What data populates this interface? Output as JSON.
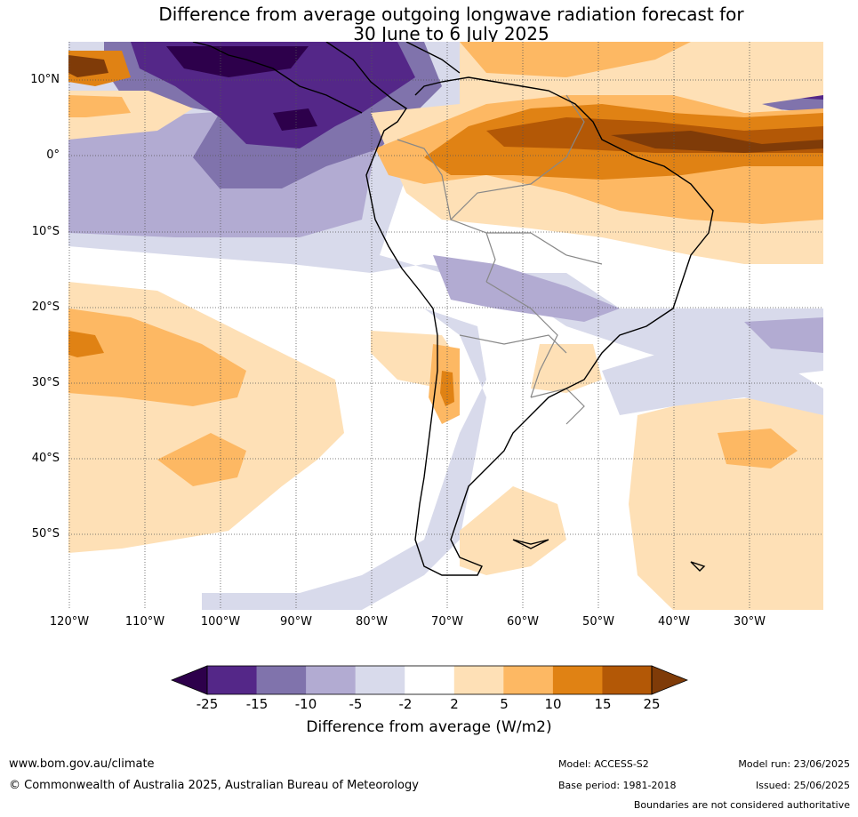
{
  "title": {
    "line1": "Difference from average outgoing longwave radiation forecast for",
    "line2": "30 June to 6 July 2025"
  },
  "map": {
    "lat_labels": [
      "10°N",
      "0°",
      "10°S",
      "20°S",
      "30°S",
      "40°S",
      "50°S"
    ],
    "lon_labels": [
      "120°W",
      "110°W",
      "100°W",
      "90°W",
      "80°W",
      "70°W",
      "60°W",
      "50°W",
      "40°W",
      "30°W"
    ],
    "grid": true
  },
  "colorbar": {
    "ticks": [
      "-25",
      "-15",
      "-10",
      "-5",
      "-2",
      "2",
      "5",
      "10",
      "15",
      "25"
    ],
    "colors": [
      "#2d004b",
      "#542788",
      "#8073ac",
      "#b2abd2",
      "#d8daeb",
      "#ffffff",
      "#fee0b6",
      "#fdb863",
      "#e08214",
      "#b35806",
      "#7f3b08"
    ],
    "label": "Difference from average (W/m2)"
  },
  "footer": {
    "url": "www.bom.gov.au/climate",
    "copyright": "© Commonwealth of Australia 2025, Australian Bureau of Meteorology",
    "model": "Model: ACCESS-S2",
    "base_period": "Base period: 1981-2018",
    "model_run": "Model run: 23/06/2025",
    "issued": "Issued: 25/06/2025",
    "disclaimer": "Boundaries are not considered authoritative"
  }
}
